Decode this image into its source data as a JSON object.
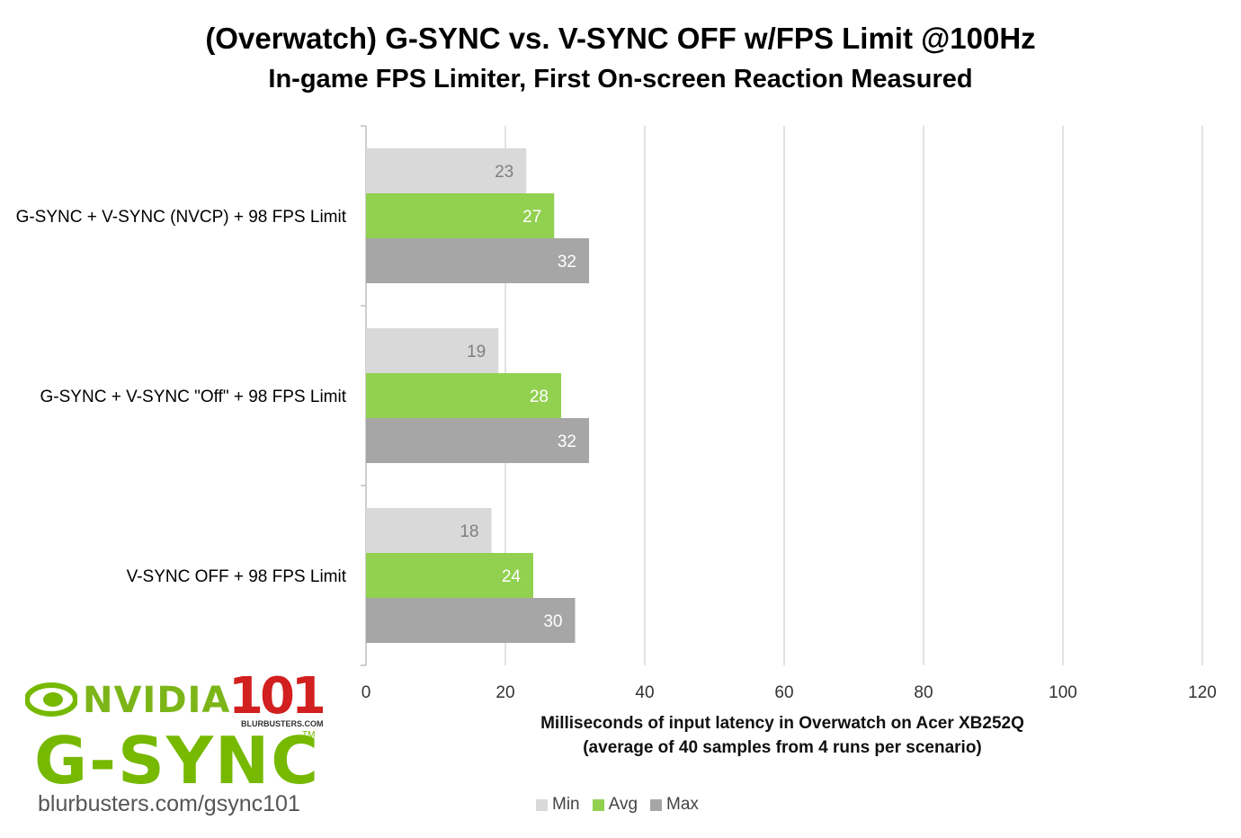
{
  "chart_data": {
    "type": "bar",
    "orientation": "horizontal",
    "title": "(Overwatch) G-SYNC vs. V-SYNC OFF w/FPS Limit @100Hz",
    "subtitle": "In-game FPS Limiter, First On-screen Reaction Measured",
    "xlabel": "Milliseconds of input latency in Overwatch on Acer XB252Q",
    "xlabel2": "(average of 40 samples from 4 runs per scenario)",
    "ylabel": "",
    "categories": [
      "G-SYNC + V-SYNC (NVCP) + 98 FPS Limit",
      "G-SYNC + V-SYNC \"Off\" + 98 FPS Limit",
      "V-SYNC OFF + 98 FPS Limit"
    ],
    "series": [
      {
        "name": "Min",
        "color": "#d9d9d9",
        "label_color": "#7f7f7f",
        "values": [
          23,
          19,
          18
        ]
      },
      {
        "name": "Avg",
        "color": "#92d050",
        "label_color": "#ffffff",
        "values": [
          27,
          28,
          24
        ]
      },
      {
        "name": "Max",
        "color": "#a6a6a6",
        "label_color": "#ffffff",
        "values": [
          32,
          32,
          30
        ]
      }
    ],
    "xlim": [
      0,
      120
    ],
    "ticks": [
      0,
      20,
      40,
      60,
      80,
      100,
      120
    ],
    "grid": true,
    "legend_position": "bottom"
  },
  "logo": {
    "nvidia": "NVIDIA",
    "badge": "101",
    "badge_site": "BLURBUSTERS.COM",
    "product": "G-SYNC",
    "tm": "TM",
    "url": "blurbusters.com/gsync101"
  }
}
